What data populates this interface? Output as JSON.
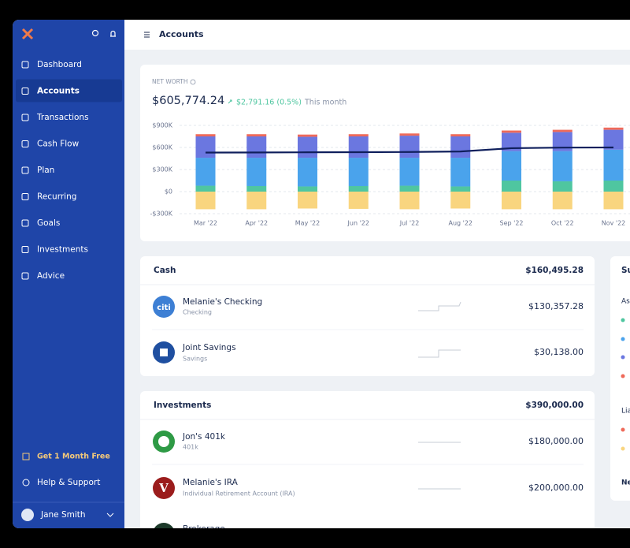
{
  "sidebar": {
    "items": [
      "Dashboard",
      "Accounts",
      "Transactions",
      "Cash Flow",
      "Plan",
      "Recurring",
      "Goals",
      "Investments",
      "Advice"
    ],
    "promo": "Get 1 Month Free",
    "help": "Help & Support",
    "user": "Jane Smith"
  },
  "header": {
    "title": "Accounts"
  },
  "net_worth": {
    "label": "NET WORTH",
    "value": "$605,774.24",
    "change": "$2,791.16 (0.5%)",
    "period": "This month"
  },
  "chart_data": {
    "type": "bar",
    "stacked": true,
    "categories": [
      "Mar '22",
      "Apr '22",
      "May '22",
      "Jun '22",
      "Jul '22",
      "Aug '22",
      "Sep '22",
      "Oct '22",
      "Nov '22"
    ],
    "series": [
      {
        "color": "#4fc6a0",
        "values": [
          80000,
          75000,
          70000,
          75000,
          80000,
          70000,
          150000,
          140000,
          150000
        ]
      },
      {
        "color": "#4aa3ec",
        "values": [
          380000,
          385000,
          390000,
          385000,
          380000,
          390000,
          400000,
          410000,
          420000
        ]
      },
      {
        "color": "#6b77e0",
        "values": [
          290000,
          290000,
          285000,
          290000,
          300000,
          290000,
          250000,
          260000,
          270000
        ]
      },
      {
        "color": "#ef6a5a",
        "values": [
          30000,
          30000,
          30000,
          30000,
          30000,
          30000,
          30000,
          30000,
          30000
        ]
      },
      {
        "color": "#f9d57f",
        "values": [
          -240000,
          -240000,
          -230000,
          -235000,
          -240000,
          -230000,
          -240000,
          -240000,
          -240000
        ]
      },
      {
        "type": "line",
        "color": "#0f1f5c",
        "values": [
          530000,
          532000,
          534000,
          536000,
          538000,
          545000,
          590000,
          598000,
          600000
        ]
      }
    ],
    "ylim": [
      -300000,
      900000
    ],
    "yticks": [
      {
        "value": -300000,
        "label": "-$300K"
      },
      {
        "value": 0,
        "label": "$0"
      },
      {
        "value": 300000,
        "label": "$300K"
      },
      {
        "value": 600000,
        "label": "$600K"
      },
      {
        "value": 900000,
        "label": "$900K"
      }
    ],
    "grid": true
  },
  "cash": {
    "title": "Cash",
    "total": "$160,495.28",
    "accounts": [
      {
        "name": "Melanie's Checking",
        "type": "Checking",
        "balance": "$130,357.28",
        "logo": "citi"
      },
      {
        "name": "Joint Savings",
        "type": "Savings",
        "balance": "$30,138.00"
      }
    ]
  },
  "investments": {
    "title": "Investments",
    "total": "$390,000.00",
    "accounts": [
      {
        "name": "Jon's 401k",
        "type": "401k",
        "balance": "$180,000.00"
      },
      {
        "name": "Melanie's IRA",
        "type": "Individual Retirement Account (IRA)",
        "balance": "$200,000.00",
        "logo": "V"
      },
      {
        "name": "Brokerage"
      }
    ]
  },
  "summary": {
    "title": "Summary",
    "assets": "Assets",
    "liabilities": "Liabilities",
    "net_worth": "Net worth"
  }
}
